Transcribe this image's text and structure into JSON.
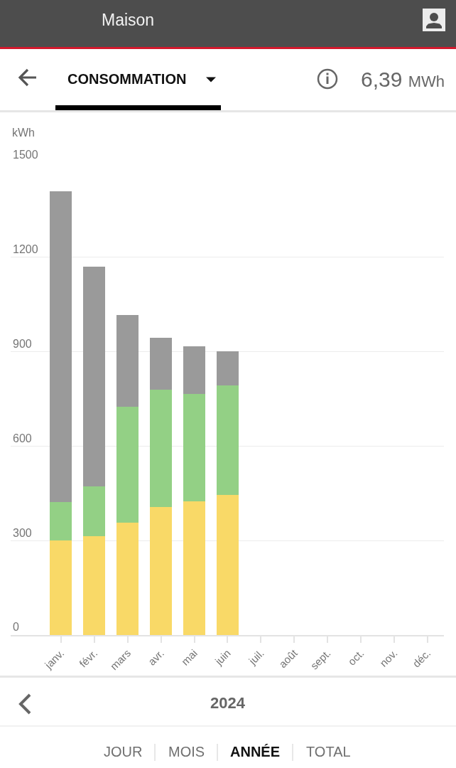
{
  "chart_data": {
    "type": "bar",
    "title": "Maison",
    "subtitle": "CONSOMMATION",
    "ylabel": "kWh",
    "categories": [
      "janv.",
      "févr.",
      "mars",
      "avr.",
      "mai",
      "juin",
      "juil.",
      "août",
      "sept.",
      "oct.",
      "nov.",
      "déc."
    ],
    "series": [
      {
        "color": "#f9d967",
        "values": [
          300,
          314,
          358,
          406,
          425,
          445,
          null,
          null,
          null,
          null,
          null,
          null
        ]
      },
      {
        "color": "#93d085",
        "values": [
          122,
          158,
          367,
          373,
          341,
          348,
          null,
          null,
          null,
          null,
          null,
          null
        ]
      },
      {
        "color": "#9a9a9a",
        "values": [
          988,
          699,
          291,
          166,
          152,
          108,
          null,
          null,
          null,
          null,
          null,
          null
        ]
      }
    ],
    "stacked": true,
    "ylim": [
      0,
      1500
    ],
    "yticks": [
      0,
      300,
      600,
      900,
      1200,
      1500
    ],
    "grid": "y",
    "annotations": [
      "6,39 MWh",
      "2024",
      "JOUR",
      "MOIS",
      "ANNÉE",
      "TOTAL"
    ]
  }
}
